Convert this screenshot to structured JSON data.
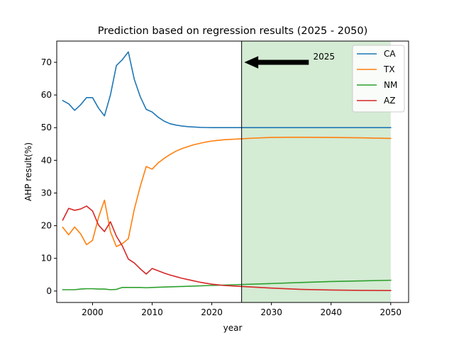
{
  "chart_data": {
    "type": "line",
    "title": "Prediction based on regression results (2025 - 2050)",
    "xlabel": "year",
    "ylabel": "AHP result(%)",
    "xlim": [
      1994,
      2053
    ],
    "ylim": [
      -3.5,
      76.5
    ],
    "xticks": [
      2000,
      2010,
      2020,
      2030,
      2040,
      2050
    ],
    "yticks": [
      0,
      10,
      20,
      30,
      40,
      50,
      60,
      70
    ],
    "grid": false,
    "legend_position": "top-right",
    "prediction_start": 2025,
    "shaded_range": [
      2025,
      2050
    ],
    "shade_color": "#d4ebd4",
    "annotation": {
      "text": "2025",
      "arrow_target": [
        2025,
        70
      ],
      "text_position": [
        2037,
        70
      ]
    },
    "series": [
      {
        "name": "CA",
        "color": "#1f77b4",
        "x": [
          1995,
          1996,
          1997,
          1998,
          1999,
          2000,
          2001,
          2002,
          2003,
          2004,
          2005,
          2006,
          2007,
          2008,
          2009,
          2010,
          2011,
          2012,
          2013,
          2014,
          2015,
          2016,
          2017,
          2018,
          2019,
          2020,
          2021,
          2022,
          2023,
          2024,
          2025,
          2030,
          2035,
          2040,
          2045,
          2050
        ],
        "y": [
          58.3,
          57.3,
          55.3,
          57.0,
          59.2,
          59.2,
          56.0,
          53.6,
          60.0,
          69.0,
          70.8,
          73.2,
          64.8,
          59.5,
          55.6,
          54.8,
          53.2,
          52.0,
          51.2,
          50.8,
          50.5,
          50.3,
          50.2,
          50.1,
          50.05,
          50.0,
          50.0,
          50.0,
          50.0,
          50.0,
          50.0,
          50.0,
          50.0,
          50.0,
          50.0,
          50.0
        ]
      },
      {
        "name": "TX",
        "color": "#ff7f0e",
        "x": [
          1995,
          1996,
          1997,
          1998,
          1999,
          2000,
          2001,
          2002,
          2003,
          2004,
          2005,
          2006,
          2007,
          2008,
          2009,
          2010,
          2011,
          2012,
          2013,
          2014,
          2015,
          2016,
          2017,
          2018,
          2019,
          2020,
          2021,
          2022,
          2023,
          2024,
          2025,
          2027,
          2030,
          2033,
          2035,
          2040,
          2045,
          2050
        ],
        "y": [
          19.5,
          17.2,
          19.6,
          17.5,
          14.2,
          15.5,
          22.5,
          27.8,
          18.2,
          13.6,
          14.5,
          16.0,
          25.0,
          32.0,
          38.1,
          37.3,
          39.2,
          40.6,
          41.8,
          42.8,
          43.6,
          44.2,
          44.8,
          45.2,
          45.6,
          45.9,
          46.1,
          46.3,
          46.4,
          46.5,
          46.6,
          46.8,
          47.0,
          47.05,
          47.05,
          47.0,
          46.9,
          46.7
        ]
      },
      {
        "name": "NM",
        "color": "#2ca02c",
        "x": [
          1995,
          1996,
          1997,
          1998,
          1999,
          2000,
          2001,
          2002,
          2003,
          2004,
          2005,
          2006,
          2007,
          2008,
          2009,
          2010,
          2015,
          2020,
          2025,
          2030,
          2035,
          2040,
          2045,
          2050
        ],
        "y": [
          0.4,
          0.4,
          0.4,
          0.6,
          0.7,
          0.7,
          0.6,
          0.6,
          0.4,
          0.5,
          1.1,
          1.1,
          1.1,
          1.1,
          1.0,
          1.1,
          1.4,
          1.7,
          2.0,
          2.3,
          2.6,
          2.9,
          3.1,
          3.3
        ]
      },
      {
        "name": "AZ",
        "color": "#d62728",
        "x": [
          1995,
          1996,
          1997,
          1998,
          1999,
          2000,
          2001,
          2002,
          2003,
          2004,
          2005,
          2006,
          2007,
          2008,
          2009,
          2010,
          2011,
          2012,
          2013,
          2014,
          2015,
          2016,
          2017,
          2018,
          2019,
          2020,
          2021,
          2022,
          2023,
          2024,
          2025,
          2027,
          2030,
          2035,
          2040,
          2045,
          2050
        ],
        "y": [
          21.7,
          25.3,
          24.7,
          25.1,
          26.0,
          24.5,
          20.2,
          18.2,
          21.2,
          16.8,
          13.8,
          9.8,
          8.6,
          6.8,
          5.2,
          6.9,
          6.2,
          5.5,
          4.9,
          4.4,
          3.9,
          3.5,
          3.1,
          2.7,
          2.4,
          2.1,
          1.9,
          1.7,
          1.6,
          1.5,
          1.4,
          1.2,
          0.9,
          0.5,
          0.3,
          0.2,
          0.15
        ]
      }
    ]
  }
}
